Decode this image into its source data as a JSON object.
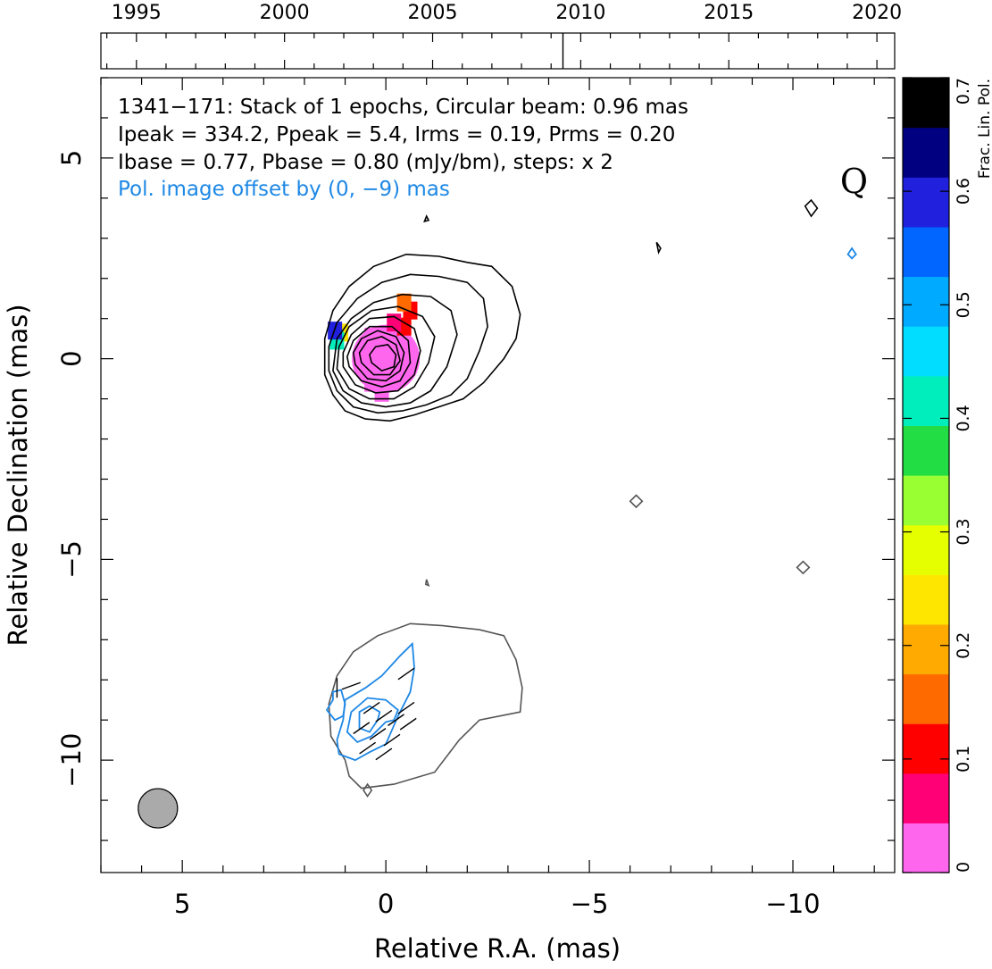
{
  "chart_data": {
    "type": "contour_map",
    "title": "",
    "xlabel": "Relative R.A. (mas)",
    "ylabel": "Relative Declination (mas)",
    "xlim": [
      7,
      -12.5
    ],
    "ylim": [
      -12.8,
      7
    ],
    "x_ticks": [
      5,
      0,
      -5,
      -10
    ],
    "x_tick_labels": [
      "5",
      "0",
      "−5",
      "−10"
    ],
    "y_ticks": [
      5,
      0,
      -5,
      -10
    ],
    "y_tick_labels": [
      "5",
      "0",
      "−5",
      "−10"
    ],
    "info_lines": [
      "1341−171: Stack of 1 epochs, Circular beam: 0.96 mas",
      "Ipeak = 334.2, Ppeak = 5.4, Irms = 0.19, Prms = 0.20",
      "Ibase = 0.77, Pbase = 0.80 (mJy/bm), steps: x 2"
    ],
    "pol_offset_note": "Pol. image offset by (0, −9) mas",
    "optical_class": "Q",
    "stats": {
      "Ipeak": 334.2,
      "Ppeak": 5.4,
      "Irms": 0.19,
      "Prms": 0.2,
      "Ibase": 0.77,
      "Pbase": 0.8,
      "units": "mJy/bm",
      "contour_step": 2
    },
    "beam": {
      "x": 5.6,
      "y": -11.2,
      "diameter_mas": 0.96
    },
    "pol_offset": [
      0,
      -9
    ],
    "timeline": {
      "xlim": [
        1993.8,
        2020.6
      ],
      "ticks": [
        1995,
        2000,
        2005,
        2010,
        2015,
        2020
      ],
      "tick_labels": [
        "1995",
        "2000",
        "2005",
        "2010",
        "2015",
        "2020"
      ],
      "epochs": [
        2009.4
      ]
    },
    "colorbar": {
      "label": "Frac. Lin. Pol.",
      "range": [
        0,
        0.7
      ],
      "ticks": [
        0,
        0.1,
        0.2,
        0.3,
        0.4,
        0.5,
        0.6,
        0.7
      ],
      "tick_labels": [
        "0",
        "0.1",
        "0.2",
        "0.3",
        "0.4",
        "0.5",
        "0.6",
        "0.7"
      ],
      "stops": [
        "#ff66ee",
        "#ff0077",
        "#ff0000",
        "#ff6a00",
        "#ffaa00",
        "#ffe600",
        "#e6ff00",
        "#99ff33",
        "#22dd44",
        "#00eebb",
        "#00ddff",
        "#00aaff",
        "#0066ff",
        "#2020dd",
        "#000080",
        "#000000"
      ]
    },
    "fpol_pixels": [
      {
        "x": 0,
        "y": 0,
        "fpol": 0.01
      },
      {
        "x": 0.35,
        "y": 0.55,
        "fpol": 0.03
      },
      {
        "x": -0.45,
        "y": 0.8,
        "fpol": 0.1
      },
      {
        "x": -0.6,
        "y": 1.2,
        "fpol": 0.13
      },
      {
        "x": -0.45,
        "y": 1.4,
        "fpol": 0.15
      },
      {
        "x": -0.2,
        "y": 0.9,
        "fpol": 0.07
      },
      {
        "x": 0.35,
        "y": -0.6,
        "fpol": 0.03
      },
      {
        "x": 0.1,
        "y": -0.85,
        "fpol": 0.04
      },
      {
        "x": 1.1,
        "y": 0.65,
        "fpol": 0.25
      },
      {
        "x": 1.2,
        "y": 0.45,
        "fpol": 0.42
      },
      {
        "x": 1.25,
        "y": 0.7,
        "fpol": 0.58
      }
    ],
    "stokes_i_contours": [
      {
        "level": "Ibase x 1",
        "points": [
          [
            1.5,
            -0.4
          ],
          [
            1.3,
            -0.9
          ],
          [
            1.0,
            -1.3
          ],
          [
            0.5,
            -1.5
          ],
          [
            -0.1,
            -1.55
          ],
          [
            -0.7,
            -1.4
          ],
          [
            -1.3,
            -1.2
          ],
          [
            -1.9,
            -1.0
          ],
          [
            -2.4,
            -0.6
          ],
          [
            -2.9,
            0.0
          ],
          [
            -3.2,
            0.5
          ],
          [
            -3.3,
            1.1
          ],
          [
            -3.1,
            1.8
          ],
          [
            -2.6,
            2.3
          ],
          [
            -2.0,
            2.4
          ],
          [
            -1.3,
            2.55
          ],
          [
            -0.5,
            2.6
          ],
          [
            0.3,
            2.3
          ],
          [
            0.9,
            1.8
          ],
          [
            1.3,
            1.2
          ],
          [
            1.5,
            0.5
          ]
        ]
      },
      {
        "level": "Ibase x 2",
        "points": [
          [
            1.4,
            -0.3
          ],
          [
            1.2,
            -0.8
          ],
          [
            0.8,
            -1.2
          ],
          [
            0.2,
            -1.35
          ],
          [
            -0.4,
            -1.3
          ],
          [
            -1.0,
            -1.15
          ],
          [
            -1.6,
            -0.9
          ],
          [
            -2.0,
            -0.5
          ],
          [
            -2.3,
            0.2
          ],
          [
            -2.5,
            0.8
          ],
          [
            -2.4,
            1.5
          ],
          [
            -2.0,
            1.9
          ],
          [
            -1.3,
            2.05
          ],
          [
            -0.6,
            2.1
          ],
          [
            0.1,
            1.9
          ],
          [
            0.7,
            1.5
          ],
          [
            1.2,
            0.9
          ],
          [
            1.4,
            0.3
          ]
        ]
      },
      {
        "level": "Ibase x 4",
        "points": [
          [
            1.3,
            -0.3
          ],
          [
            1.05,
            -0.8
          ],
          [
            0.6,
            -1.1
          ],
          [
            0.0,
            -1.2
          ],
          [
            -0.6,
            -1.1
          ],
          [
            -1.1,
            -0.8
          ],
          [
            -1.5,
            -0.2
          ],
          [
            -1.75,
            0.6
          ],
          [
            -1.6,
            1.2
          ],
          [
            -1.1,
            1.55
          ],
          [
            -0.4,
            1.6
          ],
          [
            0.3,
            1.4
          ],
          [
            0.85,
            1.0
          ],
          [
            1.2,
            0.5
          ]
        ]
      },
      {
        "level": "Ibase x 8",
        "points": [
          [
            1.2,
            -0.25
          ],
          [
            0.9,
            -0.75
          ],
          [
            0.4,
            -1.0
          ],
          [
            -0.2,
            -1.0
          ],
          [
            -0.7,
            -0.7
          ],
          [
            -1.05,
            -0.1
          ],
          [
            -1.2,
            0.55
          ],
          [
            -0.9,
            1.05
          ],
          [
            -0.3,
            1.3
          ],
          [
            0.35,
            1.2
          ],
          [
            0.9,
            0.8
          ],
          [
            1.15,
            0.3
          ]
        ]
      },
      {
        "level": "Ibase x 16",
        "points": [
          [
            1.05,
            -0.2
          ],
          [
            0.75,
            -0.65
          ],
          [
            0.25,
            -0.85
          ],
          [
            -0.3,
            -0.8
          ],
          [
            -0.7,
            -0.4
          ],
          [
            -0.85,
            0.2
          ],
          [
            -0.7,
            0.75
          ],
          [
            -0.2,
            1.05
          ],
          [
            0.4,
            1.0
          ],
          [
            0.85,
            0.6
          ],
          [
            1.05,
            0.15
          ]
        ]
      },
      {
        "level": "Ibase x 32",
        "points": [
          [
            0.9,
            -0.2
          ],
          [
            0.6,
            -0.55
          ],
          [
            0.1,
            -0.7
          ],
          [
            -0.35,
            -0.55
          ],
          [
            -0.6,
            -0.1
          ],
          [
            -0.55,
            0.45
          ],
          [
            -0.15,
            0.8
          ],
          [
            0.4,
            0.8
          ],
          [
            0.8,
            0.45
          ],
          [
            0.95,
            0.05
          ]
        ]
      },
      {
        "level": "Ibase x 64",
        "points": [
          [
            0.75,
            -0.15
          ],
          [
            0.45,
            -0.5
          ],
          [
            0.0,
            -0.55
          ],
          [
            -0.35,
            -0.3
          ],
          [
            -0.45,
            0.15
          ],
          [
            -0.25,
            0.55
          ],
          [
            0.2,
            0.7
          ],
          [
            0.6,
            0.5
          ],
          [
            0.8,
            0.15
          ]
        ]
      },
      {
        "level": "Ibase x 128",
        "points": [
          [
            0.6,
            -0.1
          ],
          [
            0.3,
            -0.4
          ],
          [
            -0.1,
            -0.4
          ],
          [
            -0.35,
            -0.05
          ],
          [
            -0.25,
            0.35
          ],
          [
            0.1,
            0.55
          ],
          [
            0.45,
            0.45
          ],
          [
            0.65,
            0.15
          ]
        ]
      },
      {
        "level": "Ibase x 256",
        "points": [
          [
            0.35,
            -0.1
          ],
          [
            0.1,
            -0.3
          ],
          [
            -0.2,
            -0.2
          ],
          [
            -0.25,
            0.1
          ],
          [
            -0.05,
            0.35
          ],
          [
            0.25,
            0.3
          ],
          [
            0.4,
            0.1
          ]
        ]
      }
    ],
    "stokes_i_islands": [
      {
        "points": [
          [
            -0.95,
            3.42
          ],
          [
            -1.0,
            3.55
          ],
          [
            -1.05,
            3.45
          ]
        ]
      },
      {
        "points": [
          [
            -10.3,
            3.8
          ],
          [
            -10.45,
            3.95
          ],
          [
            -10.6,
            3.75
          ],
          [
            -10.45,
            3.55
          ]
        ]
      },
      {
        "points": [
          [
            -6.65,
            2.9
          ],
          [
            -6.75,
            2.75
          ],
          [
            -6.7,
            2.65
          ]
        ]
      }
    ],
    "pol_contours": [
      {
        "level": "Pbase x 1",
        "points": [
          [
            0.0,
            -9.6
          ],
          [
            0.4,
            -9.8
          ],
          [
            0.75,
            -10.0
          ],
          [
            1.15,
            -9.85
          ],
          [
            1.2,
            -9.5
          ],
          [
            1.05,
            -9.0
          ],
          [
            1.0,
            -8.5
          ],
          [
            0.5,
            -8.2
          ],
          [
            0.1,
            -7.9
          ],
          [
            -0.35,
            -7.4
          ],
          [
            -0.65,
            -7.1
          ],
          [
            -0.7,
            -7.7
          ],
          [
            -0.6,
            -8.3
          ],
          [
            -0.3,
            -8.9
          ]
        ]
      },
      {
        "level": "Pbase x 2",
        "points": [
          [
            0.0,
            -9.05
          ],
          [
            0.35,
            -9.4
          ],
          [
            0.7,
            -9.55
          ],
          [
            0.95,
            -9.3
          ],
          [
            0.85,
            -8.8
          ],
          [
            0.45,
            -8.45
          ],
          [
            0.0,
            -8.5
          ],
          [
            -0.3,
            -8.75
          ],
          [
            -0.2,
            -9.0
          ]
        ]
      },
      {
        "level": "Pbase x 4",
        "points": [
          [
            0.2,
            -9.0
          ],
          [
            0.4,
            -9.3
          ],
          [
            0.65,
            -9.2
          ],
          [
            0.65,
            -8.8
          ],
          [
            0.4,
            -8.65
          ],
          [
            0.15,
            -8.8
          ]
        ]
      },
      {
        "level": "island",
        "points": [
          [
            1.3,
            -8.5
          ],
          [
            1.45,
            -8.75
          ],
          [
            1.25,
            -9.0
          ],
          [
            1.05,
            -8.9
          ],
          [
            1.0,
            -8.6
          ],
          [
            1.1,
            -8.25
          ],
          [
            1.3,
            -8.3
          ]
        ]
      },
      {
        "level": "island",
        "points": [
          [
            -11.35,
            2.6
          ],
          [
            -11.45,
            2.5
          ],
          [
            -11.55,
            2.6
          ],
          [
            -11.45,
            2.75
          ]
        ]
      }
    ],
    "shifted_i_contours": [
      {
        "level": "Ibase x 1",
        "points": [
          [
            1.4,
            -8.6
          ],
          [
            1.35,
            -9.4
          ],
          [
            1.0,
            -10.0
          ],
          [
            0.9,
            -10.4
          ],
          [
            0.6,
            -10.7
          ],
          [
            -0.2,
            -10.6
          ],
          [
            -1.2,
            -10.3
          ],
          [
            -1.8,
            -9.5
          ],
          [
            -2.3,
            -9.0
          ],
          [
            -3.3,
            -8.8
          ],
          [
            -3.35,
            -8.2
          ],
          [
            -3.2,
            -7.5
          ],
          [
            -2.9,
            -6.9
          ],
          [
            -2.3,
            -6.75
          ],
          [
            -1.4,
            -6.65
          ],
          [
            -0.6,
            -6.6
          ],
          [
            0.2,
            -6.9
          ],
          [
            0.8,
            -7.3
          ],
          [
            1.2,
            -7.9
          ]
        ]
      },
      {
        "level": "island",
        "points": [
          [
            -6.15,
            -3.4
          ],
          [
            -6.3,
            -3.55
          ],
          [
            -6.15,
            -3.7
          ],
          [
            -6.0,
            -3.55
          ]
        ]
      },
      {
        "level": "island",
        "points": [
          [
            -10.25,
            -5.05
          ],
          [
            -10.4,
            -5.2
          ],
          [
            -10.25,
            -5.35
          ],
          [
            -10.1,
            -5.2
          ]
        ]
      },
      {
        "level": "island",
        "points": [
          [
            -1.0,
            -5.5
          ],
          [
            -1.05,
            -5.65
          ],
          [
            -0.98,
            -5.62
          ]
        ]
      },
      {
        "level": "island",
        "points": [
          [
            0.45,
            -10.6
          ],
          [
            0.55,
            -10.75
          ],
          [
            0.45,
            -10.9
          ],
          [
            0.35,
            -10.75
          ]
        ]
      }
    ],
    "evpa_vectors": [
      {
        "x": 1.2,
        "y": -8.2,
        "angle_deg": 0
      },
      {
        "x": 0.85,
        "y": -8.15,
        "angle_deg": 70
      },
      {
        "x": 0.35,
        "y": -8.7,
        "angle_deg": 55
      },
      {
        "x": 0.05,
        "y": -8.9,
        "angle_deg": 55
      },
      {
        "x": -0.25,
        "y": -9.0,
        "angle_deg": 55
      },
      {
        "x": -0.5,
        "y": -8.7,
        "angle_deg": 55
      },
      {
        "x": -0.55,
        "y": -9.1,
        "angle_deg": 55
      },
      {
        "x": -0.5,
        "y": -7.85,
        "angle_deg": 55
      },
      {
        "x": 0.2,
        "y": -9.35,
        "angle_deg": 55
      },
      {
        "x": -0.15,
        "y": -9.5,
        "angle_deg": 55
      },
      {
        "x": 0.45,
        "y": -9.7,
        "angle_deg": 55
      },
      {
        "x": 0.05,
        "y": -9.85,
        "angle_deg": 55
      },
      {
        "x": 0.6,
        "y": -9.2,
        "angle_deg": 55
      }
    ],
    "colors": {
      "stokes_i": "#000000",
      "shifted_i": "#555555",
      "pol": "#1e88e5",
      "beam_fill": "#aaaaaa"
    }
  }
}
